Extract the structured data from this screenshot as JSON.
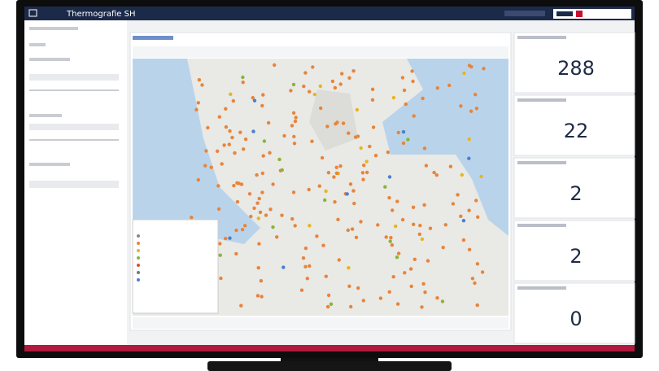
{
  "header": {
    "title": "Thermografie SH"
  },
  "kpis": [
    {
      "value": 288
    },
    {
      "value": 22
    },
    {
      "value": 2
    },
    {
      "value": 2
    },
    {
      "value": 0
    }
  ]
}
